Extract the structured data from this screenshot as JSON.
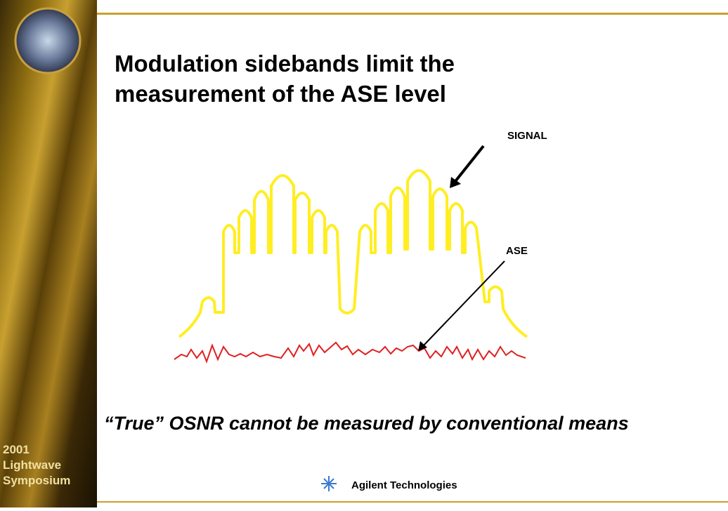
{
  "sidebar": {
    "year": "2001",
    "line1": "Lightwave",
    "line2": "Symposium"
  },
  "slide": {
    "title_line1": "Modulation sidebands limit the",
    "title_line2": "measurement of the ASE level",
    "signal_label": "SIGNAL",
    "ase_label": "ASE",
    "caption": "“True” OSNR cannot be measured by conventional means",
    "footer": "Agilent Technologies"
  }
}
